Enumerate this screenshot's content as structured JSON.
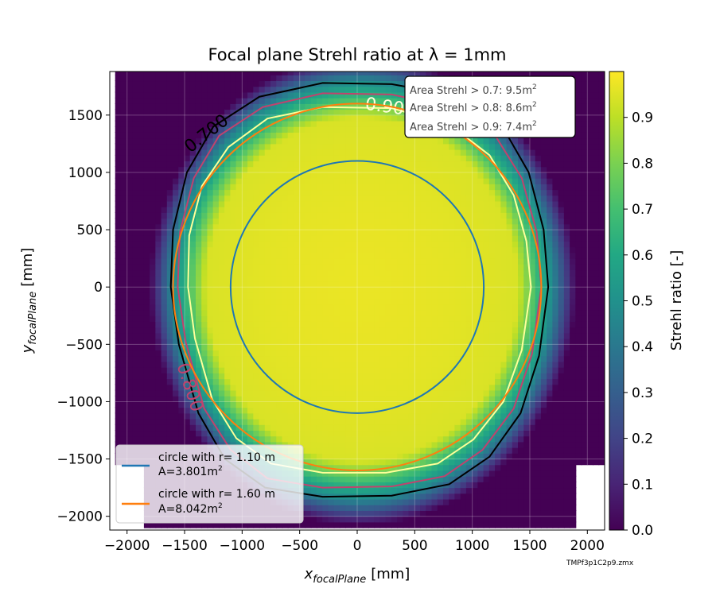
{
  "chart_data": {
    "type": "heatmap",
    "title": "Focal plane Strehl ratio at λ = 1mm",
    "xlabel_main": "x",
    "xlabel_sub": "focalPlane",
    "xlabel_unit": "[mm]",
    "ylabel_main": "y",
    "ylabel_sub": "focalPlane",
    "ylabel_unit": "[mm]",
    "xlim": [
      -2150,
      2150
    ],
    "ylim": [
      -2120,
      1880
    ],
    "xticks": [
      -2000,
      -1500,
      -1000,
      -500,
      0,
      500,
      1000,
      1500,
      2000
    ],
    "xtick_labels": [
      "−2000",
      "−1500",
      "−1000",
      "−500",
      "0",
      "500",
      "1000",
      "1500",
      "2000"
    ],
    "yticks": [
      -2000,
      -1500,
      -1000,
      -500,
      0,
      500,
      1000,
      1500
    ],
    "ytick_labels": [
      "−2000",
      "−1500",
      "−1000",
      "−500",
      "0",
      "500",
      "1000",
      "1500"
    ],
    "grid": true,
    "colormap": "viridis",
    "colorbar": {
      "label": "Strehl ratio [-]",
      "range": [
        0.0,
        1.0
      ],
      "ticks": [
        0.0,
        0.1,
        0.2,
        0.3,
        0.4,
        0.5,
        0.6,
        0.7,
        0.8,
        0.9
      ],
      "tick_labels": [
        "0.0",
        "0.1",
        "0.2",
        "0.3",
        "0.4",
        "0.5",
        "0.6",
        "0.7",
        "0.8",
        "0.9"
      ]
    },
    "contours": [
      {
        "level": 0.7,
        "label": "0.700",
        "color": "#000000",
        "points": [
          [
            -300,
            1780
          ],
          [
            300,
            1770
          ],
          [
            900,
            1660
          ],
          [
            1250,
            1420
          ],
          [
            1490,
            1000
          ],
          [
            1620,
            500
          ],
          [
            1660,
            0
          ],
          [
            1580,
            -600
          ],
          [
            1420,
            -1100
          ],
          [
            1150,
            -1480
          ],
          [
            800,
            -1720
          ],
          [
            300,
            -1820
          ],
          [
            -300,
            -1830
          ],
          [
            -800,
            -1750
          ],
          [
            -1150,
            -1500
          ],
          [
            -1380,
            -1100
          ],
          [
            -1550,
            -500
          ],
          [
            -1620,
            0
          ],
          [
            -1600,
            500
          ],
          [
            -1480,
            1000
          ],
          [
            -1250,
            1400
          ],
          [
            -850,
            1660
          ]
        ]
      },
      {
        "level": 0.8,
        "label": "0.800",
        "color": "#c1426e",
        "points": [
          [
            -300,
            1690
          ],
          [
            300,
            1680
          ],
          [
            850,
            1560
          ],
          [
            1200,
            1320
          ],
          [
            1430,
            950
          ],
          [
            1560,
            480
          ],
          [
            1600,
            0
          ],
          [
            1520,
            -580
          ],
          [
            1360,
            -1060
          ],
          [
            1090,
            -1420
          ],
          [
            760,
            -1650
          ],
          [
            300,
            -1740
          ],
          [
            -300,
            -1750
          ],
          [
            -780,
            -1670
          ],
          [
            -1100,
            -1420
          ],
          [
            -1330,
            -1060
          ],
          [
            -1490,
            -480
          ],
          [
            -1560,
            0
          ],
          [
            -1540,
            480
          ],
          [
            -1420,
            950
          ],
          [
            -1200,
            1320
          ],
          [
            -820,
            1570
          ]
        ]
      },
      {
        "level": 0.9,
        "label": "0.900",
        "color": "#ffff99",
        "points": [
          [
            -300,
            1570
          ],
          [
            300,
            1560
          ],
          [
            800,
            1420
          ],
          [
            1150,
            1150
          ],
          [
            1360,
            800
          ],
          [
            1470,
            400
          ],
          [
            1510,
            0
          ],
          [
            1430,
            -550
          ],
          [
            1270,
            -1000
          ],
          [
            1010,
            -1330
          ],
          [
            700,
            -1540
          ],
          [
            250,
            -1620
          ],
          [
            -300,
            -1620
          ],
          [
            -750,
            -1540
          ],
          [
            -1050,
            -1320
          ],
          [
            -1260,
            -980
          ],
          [
            -1410,
            -450
          ],
          [
            -1470,
            0
          ],
          [
            -1460,
            450
          ],
          [
            -1350,
            880
          ],
          [
            -1120,
            1220
          ],
          [
            -780,
            1470
          ]
        ]
      }
    ],
    "circles": [
      {
        "name": "circle with r= 1.10 m",
        "area_text": "A=3.801m",
        "sup": "2",
        "r": 1100,
        "color": "#1f77b4"
      },
      {
        "name": "circle with r= 1.60 m",
        "area_text": "A=8.042m",
        "sup": "2",
        "r": 1600,
        "color": "#ff7f0e"
      }
    ],
    "annotation": [
      {
        "text": "Area Strehl > 0.7: 9.5m",
        "sup": "2"
      },
      {
        "text": "Area Strehl > 0.8: 8.6m",
        "sup": "2"
      },
      {
        "text": "Area Strehl > 0.9: 7.4m",
        "sup": "2"
      }
    ],
    "legend_position": "lower-left",
    "annotation_position": "top-right",
    "footnote": "TMPf3p1C2p9.zmx"
  }
}
